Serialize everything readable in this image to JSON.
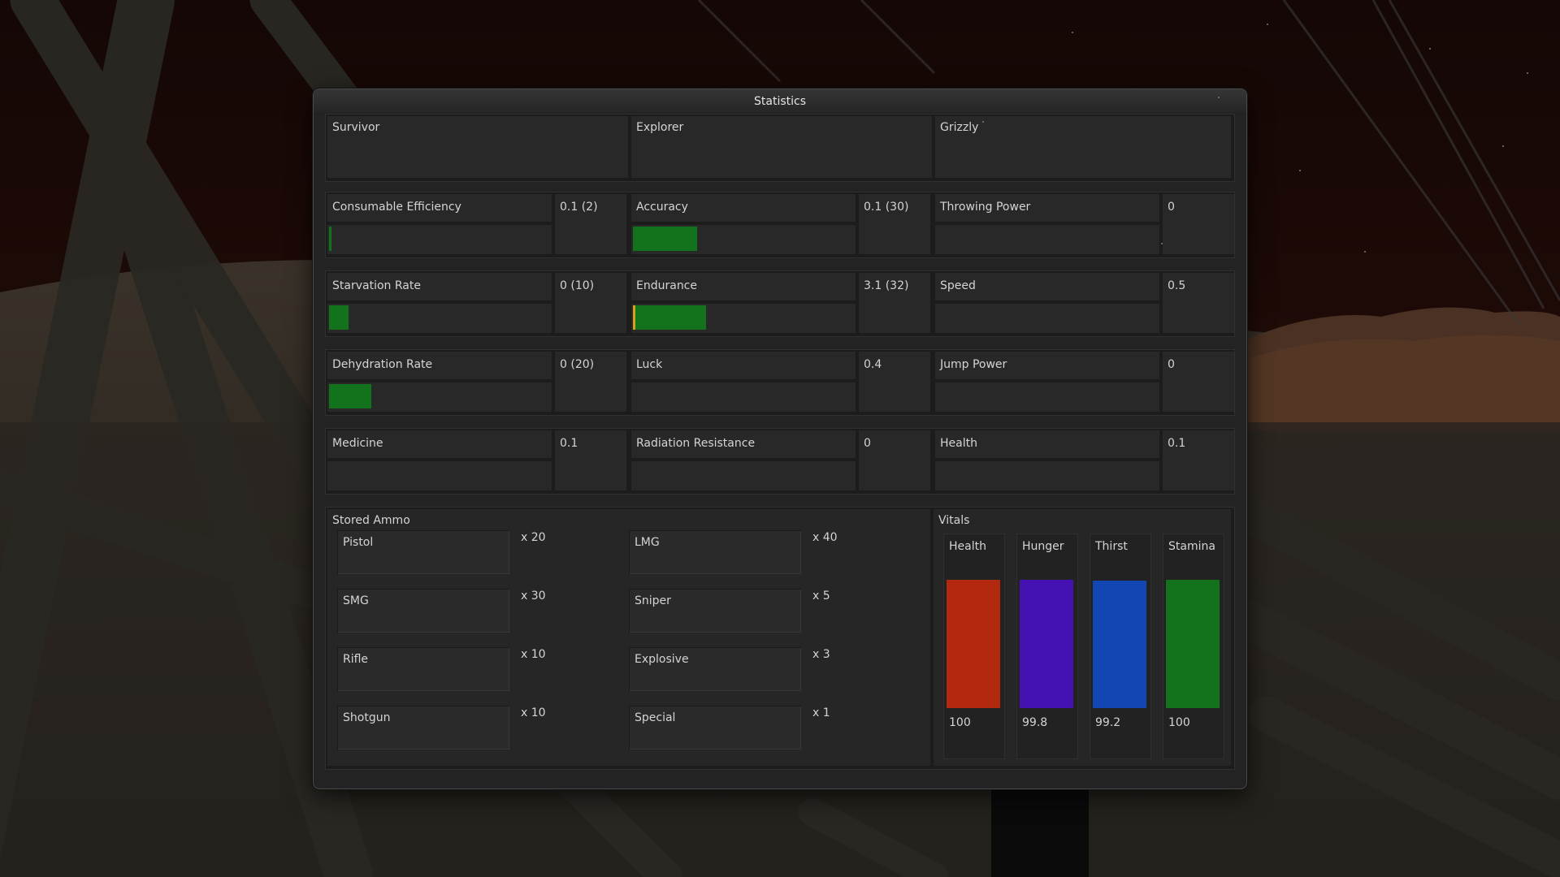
{
  "window": {
    "title": "Statistics"
  },
  "classes": [
    "Survivor",
    "Explorer",
    "Grizzly"
  ],
  "stat_rows": [
    [
      {
        "name": "Consumable Efficiency",
        "value": "0.1 (2)",
        "fill": 0.01,
        "marker": "#12731c"
      },
      {
        "name": "Accuracy",
        "value": "0.1 (30)",
        "fill": 0.29,
        "marker": null
      },
      {
        "name": "Throwing Power",
        "value": "0",
        "fill": 0,
        "marker": null
      }
    ],
    [
      {
        "name": "Starvation Rate",
        "value": "0 (10)",
        "fill": 0.09,
        "marker": null
      },
      {
        "name": "Endurance",
        "value": "3.1 (32)",
        "fill": 0.33,
        "marker": "#d6a21c"
      },
      {
        "name": "Speed",
        "value": "0.5",
        "fill": 0,
        "marker": null
      }
    ],
    [
      {
        "name": "Dehydration Rate",
        "value": "0 (20)",
        "fill": 0.19,
        "marker": null
      },
      {
        "name": "Luck",
        "value": "0.4",
        "fill": 0,
        "marker": null
      },
      {
        "name": "Jump Power",
        "value": "0",
        "fill": 0,
        "marker": null
      }
    ],
    [
      {
        "name": "Medicine",
        "value": "0.1",
        "fill": 0,
        "marker": null
      },
      {
        "name": "Radiation Resistance",
        "value": "0",
        "fill": 0,
        "marker": null
      },
      {
        "name": "Health",
        "value": "0.1",
        "fill": 0,
        "marker": null
      }
    ]
  ],
  "stored_ammo": {
    "title": "Stored Ammo",
    "items": [
      {
        "name": "Pistol",
        "count": "x 20"
      },
      {
        "name": "LMG",
        "count": "x 40"
      },
      {
        "name": "SMG",
        "count": "x 30"
      },
      {
        "name": "Sniper",
        "count": "x 5"
      },
      {
        "name": "Rifle",
        "count": "x 10"
      },
      {
        "name": "Explosive",
        "count": "x 3"
      },
      {
        "name": "Shotgun",
        "count": "x 10"
      },
      {
        "name": "Special",
        "count": "x 1"
      }
    ]
  },
  "vitals": {
    "title": "Vitals",
    "items": [
      {
        "name": "Health",
        "value": "100",
        "level": 1.0,
        "color": "#b3290f"
      },
      {
        "name": "Hunger",
        "value": "99.8",
        "level": 0.998,
        "color": "#4511b0"
      },
      {
        "name": "Thirst",
        "value": "99.2",
        "level": 0.992,
        "color": "#1146b3"
      },
      {
        "name": "Stamina",
        "value": "100",
        "level": 1.0,
        "color": "#12731c"
      }
    ]
  },
  "colors": {
    "bar_fill": "#12731c",
    "panel_bg": "#232323",
    "text": "#d6d6d6"
  }
}
